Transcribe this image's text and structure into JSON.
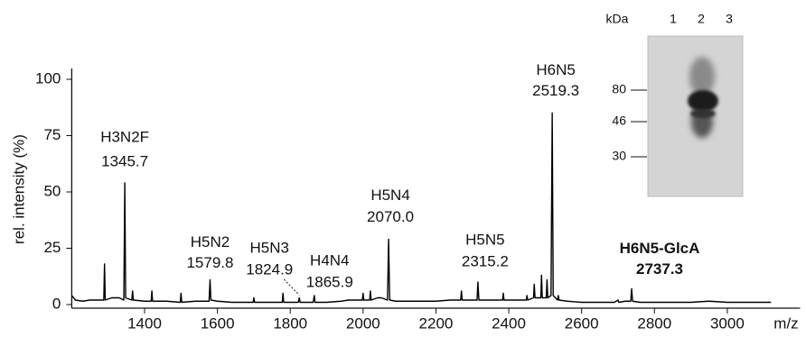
{
  "chart_data": {
    "type": "line",
    "x_label": "m/z",
    "y_label": "rel. intensity (%)",
    "color": "#000000",
    "xlim": [
      1200,
      3200
    ],
    "ylim": [
      0,
      100
    ],
    "xticks": [
      1400,
      1600,
      1800,
      2000,
      2200,
      2400,
      2600,
      2800,
      3000
    ],
    "yticks": [
      0,
      25,
      50,
      75,
      100
    ],
    "x": [
      1200,
      1210,
      1230,
      1250,
      1270,
      1288,
      1290,
      1292,
      1310,
      1330,
      1343,
      1345.7,
      1348,
      1365,
      1367,
      1369,
      1400,
      1418,
      1420,
      1422,
      1460,
      1498,
      1500,
      1502,
      1540,
      1577,
      1579.8,
      1582,
      1600,
      1640,
      1698,
      1700,
      1702,
      1740,
      1778,
      1780,
      1782,
      1800,
      1822,
      1824.9,
      1827,
      1845,
      1863,
      1865.9,
      1868,
      1900,
      1940,
      1960,
      1998,
      2000,
      2002,
      2018,
      2020,
      2022,
      2040,
      2050,
      2067,
      2070,
      2073,
      2090,
      2130,
      2180,
      2200,
      2240,
      2268,
      2270,
      2272,
      2290,
      2313,
      2315.2,
      2318,
      2350,
      2383,
      2385,
      2387,
      2420,
      2448,
      2450,
      2452,
      2468,
      2470,
      2472,
      2488,
      2490,
      2492,
      2503,
      2505,
      2507,
      2516,
      2519.3,
      2522,
      2534,
      2536,
      2538,
      2560,
      2600,
      2640,
      2690,
      2700,
      2702,
      2720,
      2735,
      2737.3,
      2740,
      2760,
      2800,
      2850,
      2900,
      2950,
      3000,
      3050,
      3100,
      3120
    ],
    "values": [
      4,
      2,
      1.5,
      2,
      2,
      2,
      18,
      2,
      3,
      3,
      2,
      54,
      3,
      2,
      6,
      2,
      1.5,
      1.5,
      6,
      1.5,
      1.5,
      1,
      5,
      1,
      1.5,
      1.5,
      11,
      2,
      1.5,
      1,
      1,
      3,
      1,
      1,
      1,
      5,
      1,
      1,
      1,
      3,
      1,
      1,
      1,
      4,
      1,
      1,
      1.5,
      2,
      2,
      5,
      2,
      2,
      6,
      2,
      3,
      3,
      2,
      29,
      2,
      1.5,
      1.5,
      1.5,
      1.5,
      2,
      2,
      6,
      2,
      2,
      2,
      10,
      2,
      2,
      2,
      5,
      2,
      2,
      2,
      4,
      2,
      3,
      9,
      3,
      3,
      13,
      3,
      3,
      11,
      3,
      4,
      85,
      4,
      2,
      4,
      2,
      1.5,
      1,
      1,
      1,
      2,
      1,
      1.5,
      1.5,
      7,
      1.5,
      1,
      1,
      1,
      1,
      1.5,
      1,
      1,
      1,
      1
    ],
    "annotations": [
      {
        "name": "H3N2F",
        "mz": {
          "value": 1345.7,
          "label": "1345.7"
        }
      },
      {
        "name": "H5N2",
        "mz": {
          "value": 1579.8,
          "label": "1579.8"
        }
      },
      {
        "name": "H5N3",
        "mz": {
          "value": 1824.9,
          "label": "1824.9"
        }
      },
      {
        "name": "H4N4",
        "mz": {
          "value": 1865.9,
          "label": "1865.9"
        }
      },
      {
        "name": "H5N4",
        "mz": {
          "value": 2070.0,
          "label": "2070.0"
        }
      },
      {
        "name": "H5N5",
        "mz": {
          "value": 2315.2,
          "label": "2315.2"
        }
      },
      {
        "name": "H6N5",
        "mz": {
          "value": 2519.3,
          "label": "2519.3"
        }
      },
      {
        "name": "H6N5-GlcA",
        "mz": {
          "value": 2737.3,
          "label": "2737.3"
        },
        "bold": true
      }
    ]
  },
  "gel": {
    "unit": "kDa",
    "lanes": [
      "1",
      "2",
      "3"
    ],
    "markers": [
      80,
      46,
      30
    ]
  }
}
